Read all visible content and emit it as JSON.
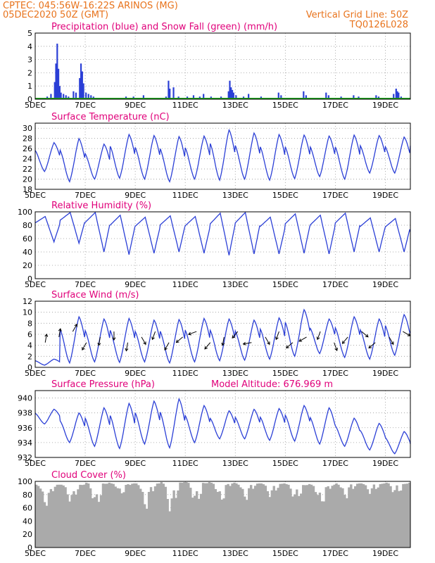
{
  "header": {
    "line1_left": "CPTEC:   045:56W-16:22S   ARINOS (MG)",
    "line2_left": "05DEC2020 50Z (GMT)",
    "line1_right": "Vertical Grid Line: 50Z",
    "line2_right": "TQ0126L028",
    "color": "#e8731c"
  },
  "colors": {
    "title": "#e0007a",
    "line": "#2b3fd6",
    "snow": "#1fa51f",
    "cloud": "#aaaaaa",
    "grid": "#999999"
  },
  "x_ticks": [
    "5DEC",
    "7DEC",
    "9DEC",
    "11DEC",
    "13DEC",
    "15DEC",
    "17DEC",
    "19DEC"
  ],
  "x_range_days": [
    5,
    20
  ],
  "chart_data": [
    {
      "id": "precip",
      "type": "bar",
      "title": "Precipitation (blue) and Snow Fall (green) (mm/h)",
      "ylim": [
        0,
        5
      ],
      "yticks": [
        "0",
        "1",
        "2",
        "3",
        "4",
        "5"
      ],
      "series": [
        {
          "x": [
            5.45,
            5.6,
            5.75,
            5.8,
            5.85,
            5.9,
            5.95,
            6.0,
            6.1,
            6.2,
            6.3,
            6.5,
            6.6,
            6.75,
            6.8,
            6.85,
            6.9,
            7.0,
            7.1,
            7.2,
            7.3,
            8.6,
            8.75,
            8.9,
            9.3,
            10.1,
            10.2,
            10.3,
            10.35,
            10.5,
            10.7,
            11.05,
            11.1,
            11.3,
            11.55,
            11.7,
            12.0,
            12.2,
            12.4,
            12.7,
            12.75,
            12.8,
            12.85,
            12.9,
            13.0,
            13.3,
            13.5,
            14.0,
            14.7,
            14.8,
            15.7,
            15.8,
            16.6,
            16.7,
            17.2,
            17.7,
            17.9,
            18.6,
            18.7,
            19.3,
            19.4,
            19.45,
            19.5,
            19.6
          ],
          "values": [
            0.2,
            0.4,
            1.3,
            2.7,
            4.2,
            2.3,
            1.0,
            0.5,
            0.4,
            0.3,
            0.2,
            0.6,
            0.5,
            1.6,
            2.7,
            2.1,
            1.2,
            0.5,
            0.4,
            0.3,
            0.2,
            0.2,
            0.1,
            0.2,
            0.3,
            0.1,
            0.2,
            1.4,
            0.8,
            0.9,
            0.2,
            0.2,
            0.1,
            0.3,
            0.2,
            0.4,
            0.2,
            0.1,
            0.2,
            0.6,
            1.4,
            0.9,
            0.7,
            0.5,
            0.3,
            0.2,
            0.4,
            0.2,
            0.5,
            0.3,
            0.6,
            0.3,
            0.5,
            0.3,
            0.2,
            0.3,
            0.2,
            0.3,
            0.2,
            0.4,
            0.8,
            0.6,
            0.5,
            0.2
          ]
        },
        {
          "name": "snow",
          "values": [
            0
          ]
        }
      ]
    },
    {
      "id": "temp",
      "type": "line",
      "title": "Surface Temperature (nC)",
      "ylim": [
        18,
        31
      ],
      "yticks": [
        "18",
        "20",
        "22",
        "24",
        "26",
        "28",
        "30"
      ],
      "days": [
        5,
        6,
        7,
        8,
        9,
        10,
        11,
        12,
        13,
        14,
        15,
        16,
        17,
        18,
        19,
        20
      ],
      "daily_max": [
        27.2,
        28.0,
        26.9,
        28.8,
        28.6,
        28.4,
        28.5,
        29.7,
        29.1,
        28.8,
        28.7,
        28.5,
        28.7,
        28.6,
        28.3,
        28.3
      ],
      "daily_min": [
        21.5,
        19.5,
        20.0,
        20.2,
        20.0,
        19.5,
        20.0,
        19.8,
        20.0,
        19.8,
        20.1,
        20.5,
        20.0,
        21.2,
        21.2,
        22.0
      ]
    },
    {
      "id": "rh",
      "type": "line",
      "title": "Relative Humidity (%)",
      "ylim": [
        0,
        100
      ],
      "yticks": [
        "0",
        "20",
        "40",
        "60",
        "80",
        "100"
      ],
      "days": [
        5,
        6,
        7,
        8,
        9,
        10,
        11,
        12,
        13,
        14,
        15,
        16,
        17,
        18,
        19,
        20
      ],
      "daily_max": [
        93,
        99,
        99,
        95,
        92,
        94,
        93,
        98,
        99,
        92,
        97,
        95,
        98,
        91,
        90,
        78
      ],
      "daily_min": [
        55,
        53,
        40,
        36,
        38,
        40,
        38,
        35,
        37,
        37,
        38,
        37,
        40,
        40,
        40,
        45
      ]
    },
    {
      "id": "wind",
      "type": "line",
      "title": "Surface Wind (m/s)",
      "ylim": [
        0,
        12
      ],
      "yticks": [
        "0",
        "2",
        "4",
        "6",
        "8",
        "10",
        "12"
      ],
      "days": [
        5,
        6,
        7,
        8,
        9,
        10,
        11,
        12,
        13,
        14,
        15,
        16,
        17,
        18,
        19,
        20
      ],
      "daily_max": [
        1.5,
        9.2,
        8.8,
        8.9,
        8.6,
        8.7,
        8.9,
        8.8,
        8.6,
        9.0,
        10.5,
        8.8,
        9.2,
        8.8,
        9.6,
        8.0
      ],
      "daily_min": [
        0.4,
        0.8,
        1.0,
        0.9,
        1.0,
        0.8,
        1.0,
        1.2,
        1.3,
        1.5,
        2.0,
        2.5,
        1.8,
        1.5,
        2.2,
        2.5
      ],
      "arrows_dir_deg": [
        80,
        80,
        60,
        240,
        260,
        270,
        260,
        300,
        250,
        240,
        220,
        200,
        230,
        260,
        230,
        190,
        300,
        250,
        220,
        210,
        250,
        290,
        230,
        320,
        220,
        300,
        330
      ]
    },
    {
      "id": "pres",
      "type": "line",
      "title": "Surface Pressure (hPa)",
      "annotation": "Model Altitude: 676.969 m",
      "ylim": [
        932,
        941
      ],
      "yticks": [
        "932",
        "934",
        "936",
        "938",
        "940"
      ],
      "days": [
        5,
        6,
        7,
        8,
        9,
        10,
        11,
        12,
        13,
        14,
        15,
        16,
        17,
        18,
        19,
        20
      ],
      "daily_max": [
        938.5,
        938.0,
        938.7,
        939.3,
        939.6,
        939.9,
        939.0,
        938.3,
        938.5,
        938.6,
        939.0,
        938.7,
        937.3,
        936.6,
        935.5,
        934.5
      ],
      "daily_min": [
        936.5,
        934.0,
        933.5,
        933.2,
        933.8,
        933.3,
        934.0,
        934.5,
        934.5,
        934.3,
        934.2,
        933.8,
        933.5,
        933.0,
        932.5,
        932.0
      ]
    },
    {
      "id": "cloud",
      "type": "area",
      "title": "Cloud Cover (%)",
      "ylim": [
        0,
        100
      ],
      "yticks": [
        "0",
        "20",
        "40",
        "60",
        "80",
        "100"
      ],
      "days": [
        5,
        6,
        7,
        8,
        9,
        10,
        11,
        12,
        13,
        14,
        15,
        16,
        17,
        18,
        19,
        20
      ],
      "daily_max": [
        95,
        95,
        98,
        97,
        97,
        99,
        99,
        98,
        97,
        97,
        96,
        95,
        97,
        97,
        98,
        98
      ],
      "daily_min": [
        55,
        60,
        50,
        75,
        45,
        35,
        50,
        55,
        60,
        65,
        55,
        45,
        60,
        70,
        65,
        70
      ]
    }
  ]
}
